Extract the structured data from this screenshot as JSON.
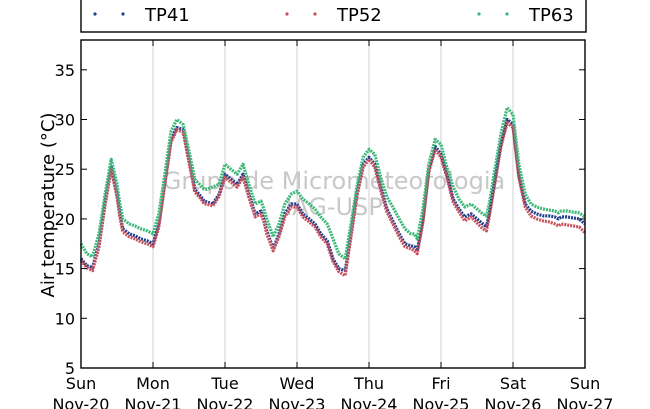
{
  "chart_data": {
    "type": "line",
    "ylabel": "Air temperature (°C)",
    "ylim": [
      5,
      38
    ],
    "y_ticks": [
      5,
      10,
      15,
      20,
      25,
      30,
      35
    ],
    "x_range_days": [
      0,
      7
    ],
    "x_ticks": [
      {
        "day": 0,
        "line1": "Sun",
        "line2": "Nov-20"
      },
      {
        "day": 1,
        "line1": "Mon",
        "line2": "Nov-21"
      },
      {
        "day": 2,
        "line1": "Tue",
        "line2": "Nov-22"
      },
      {
        "day": 3,
        "line1": "Wed",
        "line2": "Nov-23"
      },
      {
        "day": 4,
        "line1": "Thu",
        "line2": "Nov-24"
      },
      {
        "day": 5,
        "line1": "Fri",
        "line2": "Nov-25"
      },
      {
        "day": 6,
        "line1": "Sat",
        "line2": "Nov-26"
      },
      {
        "day": 7,
        "line1": "Sun",
        "line2": "Nov-27"
      }
    ],
    "grid": "vertical",
    "legend_position": "top",
    "watermark": [
      "Grupo de Micrometeorologia",
      "IAG-USP"
    ],
    "series": [
      {
        "name": "TP41",
        "color": "#1f3f8f",
        "x": [
          0,
          0.08,
          0.16,
          0.25,
          0.33,
          0.42,
          0.5,
          0.54,
          0.58,
          0.67,
          0.75,
          0.83,
          0.92,
          1,
          1.08,
          1.17,
          1.25,
          1.33,
          1.42,
          1.5,
          1.58,
          1.67,
          1.71,
          1.75,
          1.83,
          1.92,
          2,
          2.08,
          2.17,
          2.25,
          2.33,
          2.42,
          2.5,
          2.54,
          2.58,
          2.67,
          2.75,
          2.83,
          2.92,
          3,
          3.08,
          3.17,
          3.25,
          3.33,
          3.42,
          3.5,
          3.58,
          3.67,
          3.75,
          3.83,
          3.92,
          4,
          4.08,
          4.17,
          4.25,
          4.33,
          4.42,
          4.5,
          4.58,
          4.63,
          4.67,
          4.75,
          4.83,
          4.92,
          5,
          5.08,
          5.17,
          5.25,
          5.33,
          5.42,
          5.5,
          5.58,
          5.63,
          5.67,
          5.75,
          5.83,
          5.92,
          6,
          6.08,
          6.17,
          6.25,
          6.33,
          6.42,
          6.5,
          6.58,
          6.63,
          6.67,
          6.75,
          6.83,
          6.92,
          7
        ],
        "y": [
          16,
          15.3,
          15.1,
          17.5,
          21.5,
          25.2,
          22.5,
          20.5,
          19,
          18.5,
          18.3,
          18,
          17.8,
          17.5,
          19.5,
          24,
          28,
          29.2,
          29,
          26,
          23,
          22.2,
          21.8,
          21.7,
          21.5,
          22.5,
          24.5,
          24,
          23.5,
          24.5,
          22.5,
          20.5,
          20.8,
          20,
          18.8,
          17,
          18.5,
          20.5,
          21.5,
          21.5,
          20.5,
          20,
          19.5,
          18.5,
          17.8,
          16,
          15,
          14.8,
          18.5,
          22.5,
          25.5,
          26.2,
          25.5,
          23,
          21,
          19.8,
          18.5,
          17.5,
          17.3,
          17.2,
          16.8,
          20,
          25,
          27.3,
          26.5,
          24.5,
          22,
          21,
          20.2,
          20.5,
          20,
          19.5,
          19.2,
          20.5,
          24,
          27.5,
          30,
          29.5,
          24.5,
          21.5,
          20.8,
          20.5,
          20.3,
          20.3,
          20.2,
          20,
          20.2,
          20.2,
          20.1,
          20,
          19.5
        ]
      },
      {
        "name": "TP52",
        "color": "#c8505a",
        "x": [
          0,
          0.08,
          0.16,
          0.25,
          0.33,
          0.42,
          0.5,
          0.54,
          0.58,
          0.67,
          0.75,
          0.83,
          0.92,
          1,
          1.08,
          1.17,
          1.25,
          1.33,
          1.42,
          1.5,
          1.58,
          1.67,
          1.71,
          1.75,
          1.83,
          1.92,
          2,
          2.08,
          2.17,
          2.25,
          2.33,
          2.42,
          2.5,
          2.54,
          2.58,
          2.67,
          2.75,
          2.83,
          2.92,
          3,
          3.08,
          3.17,
          3.25,
          3.33,
          3.42,
          3.5,
          3.58,
          3.67,
          3.75,
          3.83,
          3.92,
          4,
          4.08,
          4.17,
          4.25,
          4.33,
          4.42,
          4.5,
          4.58,
          4.63,
          4.67,
          4.75,
          4.83,
          4.92,
          5,
          5.08,
          5.17,
          5.25,
          5.33,
          5.42,
          5.5,
          5.58,
          5.63,
          5.67,
          5.75,
          5.83,
          5.92,
          6,
          6.08,
          6.17,
          6.25,
          6.33,
          6.42,
          6.5,
          6.58,
          6.63,
          6.67,
          6.75,
          6.83,
          6.92,
          7
        ],
        "y": [
          15.8,
          15.1,
          14.8,
          17.2,
          21.2,
          25,
          22.2,
          20.2,
          18.7,
          18.2,
          18,
          17.7,
          17.5,
          17.2,
          19.2,
          23.7,
          27.7,
          29,
          28.7,
          25.7,
          22.7,
          22,
          21.5,
          21.5,
          21.3,
          22.3,
          24.2,
          23.7,
          23.2,
          24.2,
          22.2,
          20.2,
          20.5,
          19.7,
          18.5,
          16.8,
          18.2,
          20.2,
          21.2,
          21.2,
          20.2,
          19.7,
          19.2,
          18.2,
          17.5,
          15.7,
          14.7,
          14.3,
          18.2,
          22.2,
          25.2,
          26,
          25.2,
          22.7,
          20.7,
          19.5,
          18.2,
          17.2,
          17,
          16.8,
          16.5,
          19.7,
          24.7,
          27,
          26.2,
          24.2,
          21.7,
          20.7,
          19.8,
          20.2,
          19.6,
          19,
          18.8,
          20.2,
          23.7,
          27.2,
          29.7,
          29.2,
          24.2,
          21.2,
          20.3,
          20,
          19.8,
          19.7,
          19.5,
          19.3,
          19.5,
          19.4,
          19.3,
          19.2,
          18.6
        ]
      },
      {
        "name": "TP63",
        "color": "#3cb878",
        "x": [
          0,
          0.08,
          0.16,
          0.25,
          0.33,
          0.42,
          0.5,
          0.54,
          0.58,
          0.67,
          0.75,
          0.83,
          0.92,
          1,
          1.08,
          1.17,
          1.25,
          1.33,
          1.42,
          1.5,
          1.58,
          1.67,
          1.71,
          1.75,
          1.83,
          1.92,
          2,
          2.08,
          2.17,
          2.25,
          2.33,
          2.42,
          2.5,
          2.54,
          2.58,
          2.67,
          2.75,
          2.83,
          2.92,
          3,
          3.08,
          3.17,
          3.25,
          3.33,
          3.42,
          3.5,
          3.58,
          3.67,
          3.75,
          3.83,
          3.92,
          4,
          4.08,
          4.17,
          4.25,
          4.33,
          4.42,
          4.5,
          4.58,
          4.63,
          4.67,
          4.75,
          4.83,
          4.92,
          5,
          5.08,
          5.17,
          5.25,
          5.33,
          5.42,
          5.5,
          5.58,
          5.63,
          5.67,
          5.75,
          5.83,
          5.92,
          6,
          6.08,
          6.17,
          6.25,
          6.33,
          6.42,
          6.5,
          6.58,
          6.63,
          6.67,
          6.75,
          6.83,
          6.92,
          7
        ],
        "y": [
          17.5,
          16.5,
          16.2,
          18.5,
          22.3,
          26,
          23.5,
          21.5,
          20,
          19.5,
          19.3,
          19,
          18.8,
          18.5,
          20.5,
          24.7,
          28.8,
          30,
          29.5,
          26.8,
          24,
          23.3,
          23,
          23,
          23.2,
          23.5,
          25.5,
          25,
          24.5,
          25.5,
          23.5,
          21.5,
          21.8,
          21,
          20,
          18.2,
          19.5,
          21.5,
          22.5,
          22.8,
          22,
          21.5,
          21,
          20.2,
          19.5,
          18,
          16.5,
          16,
          19.5,
          23.2,
          26.2,
          27,
          26.5,
          24,
          22.2,
          21.2,
          20,
          19,
          18.5,
          18.5,
          18,
          21,
          25.5,
          28,
          27.5,
          25.2,
          23.2,
          22,
          21.2,
          21.5,
          21,
          20.5,
          20.3,
          21.5,
          25,
          28.5,
          31.2,
          30.5,
          25.5,
          22.5,
          21.5,
          21.2,
          21,
          20.9,
          20.8,
          20.6,
          20.8,
          20.8,
          20.7,
          20.6,
          20.2
        ]
      }
    ]
  }
}
